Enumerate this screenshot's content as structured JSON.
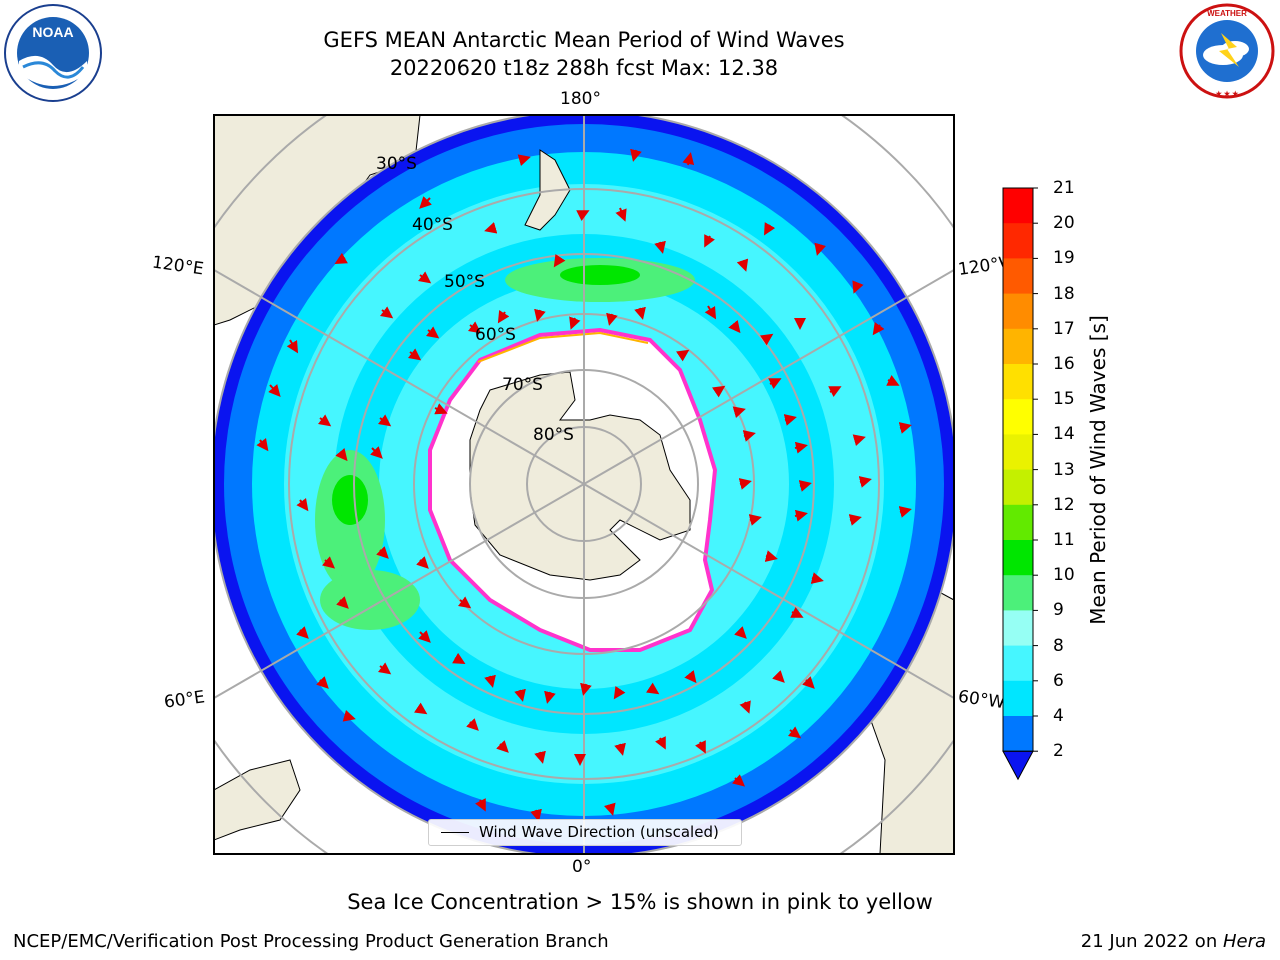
{
  "title": {
    "line1": "GEFS MEAN Antarctic Mean Period of Wind Waves",
    "line2": "20220620 t18z 288h fcst   Max: 12.38"
  },
  "logos": {
    "left": "NOAA",
    "right": "NATIONAL WEATHER SERVICE"
  },
  "map": {
    "projection": "south-polar-stereographic",
    "lon_labels": {
      "top": "180°",
      "bottom": "0°",
      "upper_left": "120°E",
      "lower_left": "60°E",
      "upper_right": "120°W",
      "lower_right": "60°W"
    },
    "lat_labels": [
      "30°S",
      "40°S",
      "50°S",
      "60°S",
      "70°S",
      "80°S"
    ],
    "legend": "Wind Wave Direction (unscaled)",
    "colors": {
      "land": "#efecdc",
      "ice": "#ffffff",
      "ice_edge": "#ff33cc",
      "arrows": "#e00000",
      "gridlines": "#aaaaaa"
    }
  },
  "colorbar": {
    "label": "Mean Period of Wind Waves [s]",
    "ticks": [
      "2",
      "4",
      "6",
      "8",
      "9",
      "10",
      "11",
      "12",
      "13",
      "14",
      "15",
      "16",
      "17",
      "18",
      "19",
      "20",
      "21"
    ],
    "colors": [
      "#0a14f0",
      "#0078ff",
      "#00e6ff",
      "#46f6ff",
      "#96fff4",
      "#4cf07a",
      "#00e600",
      "#62ea00",
      "#c4f000",
      "#eaf200",
      "#ffff00",
      "#ffe000",
      "#ffb400",
      "#ff8c00",
      "#ff5a00",
      "#ff2800",
      "#ff0000"
    ]
  },
  "caption": "Sea Ice Concentration > 15% is shown in pink to yellow",
  "footer": {
    "left": "NCEP/EMC/Verification Post Processing Product Generation Branch",
    "right_date": "21 Jun 2022 on ",
    "right_machine": "Hera"
  }
}
